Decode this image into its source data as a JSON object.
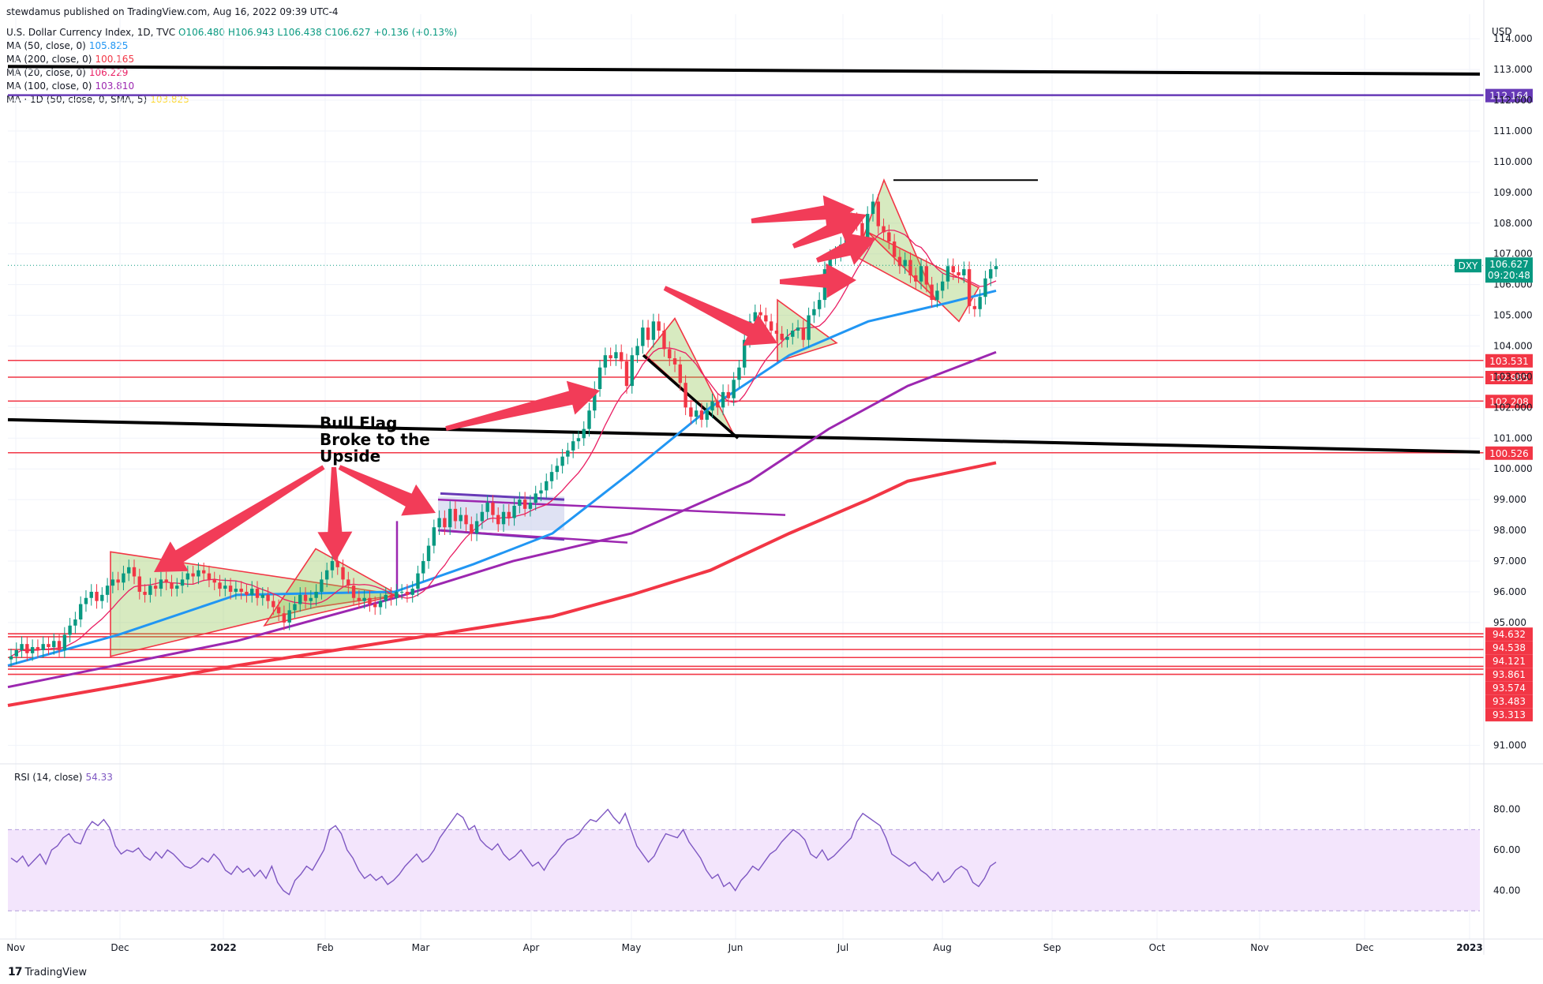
{
  "publisher": {
    "user": "stewdamus",
    "text": "published on TradingView.com, Aug 16, 2022 09:39 UTC-4"
  },
  "legend": {
    "title": "U.S. Dollar Currency Index, 1D, TVC",
    "ohlc": {
      "o": "O106.480",
      "h": "H106.943",
      "l": "L106.438",
      "c": "C106.627",
      "chg": "+0.136 (+0.13%)"
    },
    "ma": [
      {
        "label": "MA (50, close, 0)",
        "value": "105.825",
        "color": "#2196f3"
      },
      {
        "label": "MA (200, close, 0)",
        "value": "100.165",
        "color": "#f23645"
      },
      {
        "label": "MA (20, close, 0)",
        "value": "106.229",
        "color": "#e91e63"
      },
      {
        "label": "MA (100, close, 0)",
        "value": "103.810",
        "color": "#9c27b0"
      },
      {
        "label": "MA · 1D (50, close, 0, SMA, 5)",
        "value": "103.825",
        "color": "#ffeb3b"
      }
    ]
  },
  "axis": {
    "currency": "USD",
    "symbol_badge": "DXY",
    "last_price": "106.627",
    "countdown": "09:20:48"
  },
  "rsi_legend": {
    "label": "RSI (14, close)",
    "value": "54.33"
  },
  "annotation_text": [
    "Bull Flag",
    "Broke to the",
    "Upside"
  ],
  "footer": {
    "brand": "TradingView"
  },
  "colors": {
    "up": "#089981",
    "down": "#f23645",
    "ma50": "#2196f3",
    "ma200": "#f23645",
    "ma100": "#9c27b0",
    "ma20": "#e91e63",
    "rsi": "#7e57c2",
    "rsiband": "#f3e5fc",
    "purple_line": "#673ab7"
  },
  "chart_data": {
    "type": "candlestick",
    "x_ticks": [
      "Nov",
      "Dec",
      "2022",
      "Feb",
      "Mar",
      "Apr",
      "May",
      "Jun",
      "Jul",
      "Aug",
      "Sep",
      "Oct",
      "Nov",
      "Dec",
      "2023"
    ],
    "y_ticks": [
      91,
      95,
      96,
      97,
      98,
      99,
      100,
      101,
      102,
      103,
      104,
      105,
      106,
      107,
      108,
      109,
      110,
      111,
      112,
      113,
      114
    ],
    "ylim": [
      90.4,
      114.8
    ],
    "price_levels": [
      {
        "value": 112.164,
        "label": "112.164",
        "color": "#673ab7"
      },
      {
        "value": 103.531,
        "label": "103.531",
        "color": "#f23645"
      },
      {
        "value": 102.985,
        "label": "102.985",
        "color": "#f23645"
      },
      {
        "value": 102.208,
        "label": "102.208",
        "color": "#f23645"
      },
      {
        "value": 100.526,
        "label": "100.526",
        "color": "#f23645"
      },
      {
        "value": 94.632,
        "label": "94.632",
        "color": "#f23645"
      },
      {
        "value": 94.538,
        "label": "94.538",
        "color": "#f23645"
      },
      {
        "value": 94.121,
        "label": "94.121",
        "color": "#f23645"
      },
      {
        "value": 93.861,
        "label": "93.861",
        "color": "#f23645"
      },
      {
        "value": 93.574,
        "label": "93.574",
        "color": "#f23645"
      },
      {
        "value": 93.483,
        "label": "93.483",
        "color": "#f23645"
      },
      {
        "value": 93.313,
        "label": "93.313",
        "color": "#f23645"
      }
    ],
    "rsi_ticks": [
      80,
      60,
      40
    ],
    "rsi_band": [
      30,
      70
    ],
    "rsi_last": 54.33,
    "closes": [
      93.9,
      94.1,
      94.3,
      94.0,
      94.2,
      94.1,
      94.3,
      94.2,
      94.4,
      94.1,
      94.6,
      94.9,
      95.1,
      95.6,
      95.8,
      96.0,
      95.7,
      95.9,
      96.2,
      96.4,
      96.3,
      96.6,
      96.8,
      96.5,
      96.0,
      95.9,
      96.2,
      96.1,
      96.4,
      96.3,
      96.1,
      96.2,
      96.4,
      96.6,
      96.5,
      96.7,
      96.6,
      96.4,
      96.3,
      96.1,
      96.2,
      96.0,
      96.1,
      96.0,
      95.9,
      96.1,
      95.8,
      95.9,
      95.7,
      95.5,
      95.3,
      95.0,
      95.4,
      95.6,
      95.9,
      95.7,
      95.8,
      96.0,
      96.4,
      96.7,
      97.0,
      96.8,
      96.4,
      96.2,
      95.8,
      95.7,
      95.8,
      95.6,
      95.5,
      95.7,
      95.9,
      95.8,
      96.0,
      96.0,
      95.9,
      96.1,
      96.6,
      97.0,
      97.5,
      98.1,
      98.4,
      98.1,
      98.7,
      98.3,
      98.5,
      98.2,
      97.9,
      98.3,
      98.6,
      98.9,
      98.5,
      98.2,
      98.6,
      98.4,
      98.8,
      99.0,
      98.7,
      98.9,
      99.2,
      99.3,
      99.6,
      99.9,
      100.1,
      100.4,
      100.6,
      100.9,
      101.0,
      101.3,
      101.9,
      102.6,
      103.3,
      103.7,
      103.6,
      103.8,
      103.5,
      102.7,
      103.7,
      104.0,
      104.6,
      104.2,
      104.8,
      104.5,
      103.9,
      103.6,
      103.4,
      102.8,
      102.0,
      101.7,
      101.9,
      101.6,
      101.9,
      102.2,
      102.0,
      102.5,
      102.3,
      102.9,
      103.3,
      104.2,
      104.8,
      105.1,
      105.0,
      104.8,
      104.5,
      104.4,
      104.2,
      104.3,
      104.5,
      104.6,
      104.2,
      105.0,
      105.2,
      105.5,
      106.5,
      106.9,
      107.0,
      107.3,
      107.7,
      108.1,
      108.0,
      107.4,
      108.3,
      108.7,
      107.9,
      107.7,
      107.4,
      106.9,
      106.6,
      106.8,
      106.3,
      106.1,
      106.6,
      106.0,
      105.5,
      105.8,
      106.1,
      106.6,
      106.4,
      106.3,
      106.5,
      105.3,
      105.2,
      105.6,
      106.2,
      106.5,
      106.6
    ],
    "rsi_values": [
      56,
      54,
      57,
      52,
      55,
      58,
      53,
      60,
      62,
      66,
      68,
      64,
      63,
      70,
      74,
      72,
      75,
      71,
      62,
      58,
      60,
      59,
      61,
      57,
      55,
      59,
      56,
      60,
      58,
      55,
      52,
      51,
      53,
      56,
      54,
      58,
      55,
      50,
      48,
      52,
      49,
      51,
      47,
      50,
      46,
      52,
      44,
      40,
      38,
      45,
      48,
      52,
      50,
      55,
      60,
      70,
      72,
      68,
      60,
      56,
      50,
      46,
      48,
      45,
      47,
      43,
      45,
      48,
      52,
      55,
      58,
      54,
      56,
      60,
      66,
      70,
      74,
      78,
      76,
      70,
      72,
      65,
      62,
      60,
      63,
      58,
      55,
      57,
      60,
      56,
      52,
      54,
      50,
      55,
      58,
      62,
      65,
      66,
      68,
      72,
      75,
      74,
      77,
      80,
      76,
      73,
      78,
      70,
      62,
      58,
      54,
      57,
      63,
      68,
      67,
      66,
      70,
      64,
      60,
      56,
      50,
      46,
      48,
      42,
      44,
      40,
      45,
      48,
      52,
      50,
      54,
      58,
      60,
      64,
      67,
      70,
      68,
      65,
      58,
      56,
      60,
      55,
      57,
      60,
      63,
      66,
      74,
      78,
      76,
      74,
      72,
      66,
      58,
      56,
      54,
      52,
      54,
      50,
      48,
      45,
      49,
      44,
      46,
      50,
      52,
      50,
      44,
      42,
      46,
      52,
      54
    ]
  }
}
